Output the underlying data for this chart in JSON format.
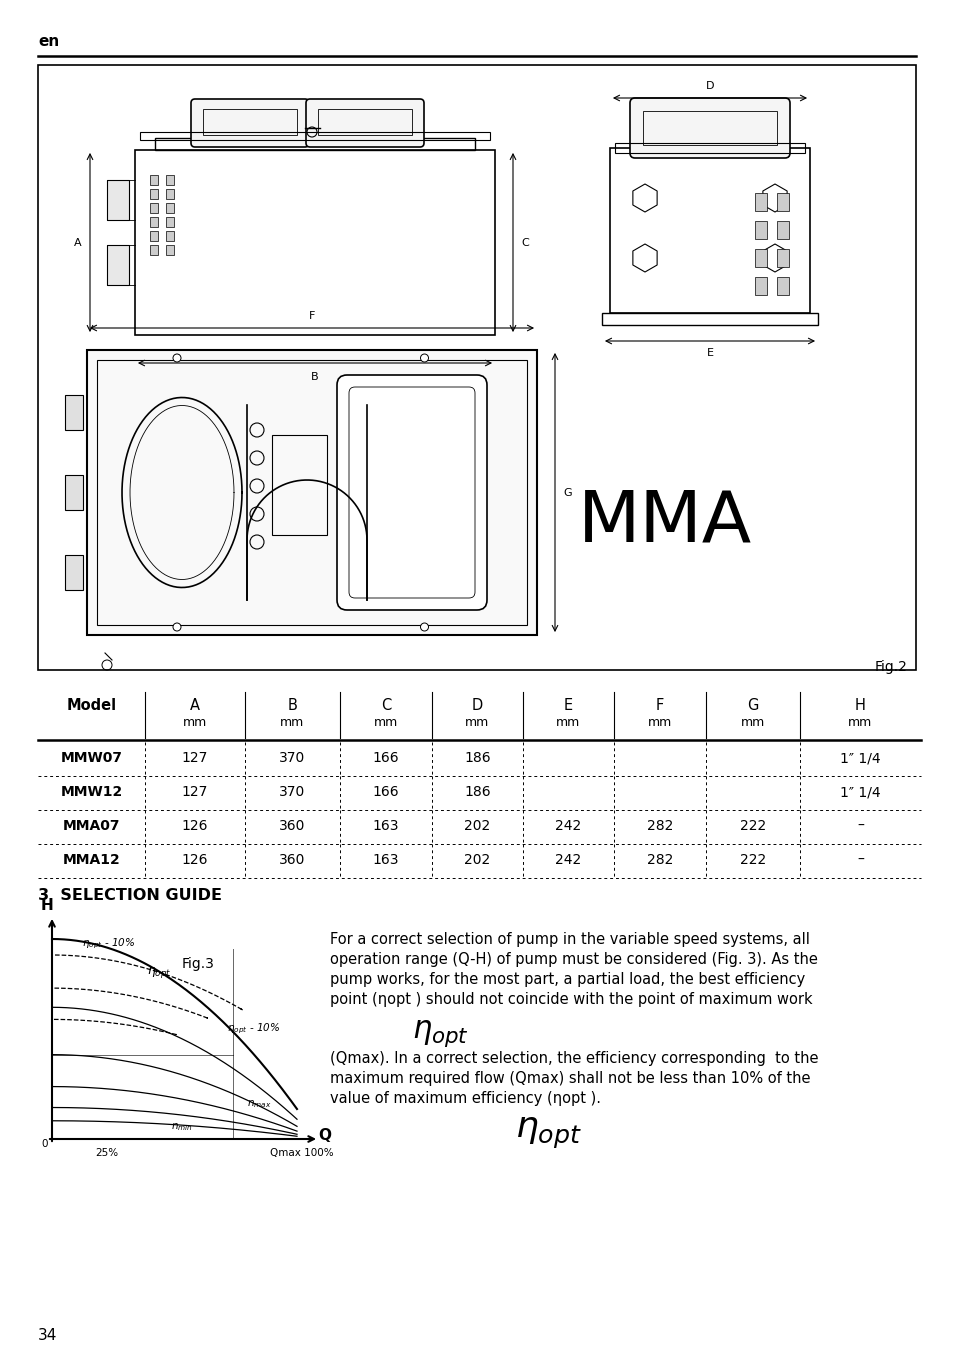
{
  "page_label": "en",
  "page_number": "34",
  "fig2_label": "Fig.2",
  "fig3_label": "Fig.3",
  "mma_text": "MMA",
  "section_title": "3  SELECTION GUIDE",
  "table_headers_row1": [
    "Model",
    "A",
    "B",
    "C",
    "D",
    "E",
    "F",
    "G",
    "H"
  ],
  "table_headers_row2": [
    "",
    "mm",
    "mm",
    "mm",
    "mm",
    "mm",
    "mm",
    "mm",
    "mm"
  ],
  "table_data": [
    [
      "MMW07",
      "127",
      "370",
      "166",
      "186",
      "",
      "",
      "",
      "1″ 1/4"
    ],
    [
      "MMW12",
      "127",
      "370",
      "166",
      "186",
      "",
      "",
      "",
      "1″ 1/4"
    ],
    [
      "MMA07",
      "126",
      "360",
      "163",
      "202",
      "242",
      "282",
      "222",
      "–"
    ],
    [
      "MMA12",
      "126",
      "360",
      "163",
      "202",
      "242",
      "282",
      "222",
      "–"
    ]
  ],
  "para1_line1": "For a correct selection of pump in the variable speed systems, all",
  "para1_line2": "operation range (Q-H) of pump must be considered (Fig. 3). As the",
  "para1_line3": "pump works, for the most part, a partial load, the best efficiency",
  "para1_line4": "point (ηopt ) should not coincide with the point of maximum work",
  "para2_line1": "(Qmax). In a correct selection, the efficiency corresponding  to the",
  "para2_line2": "maximum required flow (Qmax) shall not be less than 10% of the",
  "para2_line3": "value of maximum efficiency (ηopt ).",
  "bg_color": "#ffffff",
  "text_color": "#000000"
}
